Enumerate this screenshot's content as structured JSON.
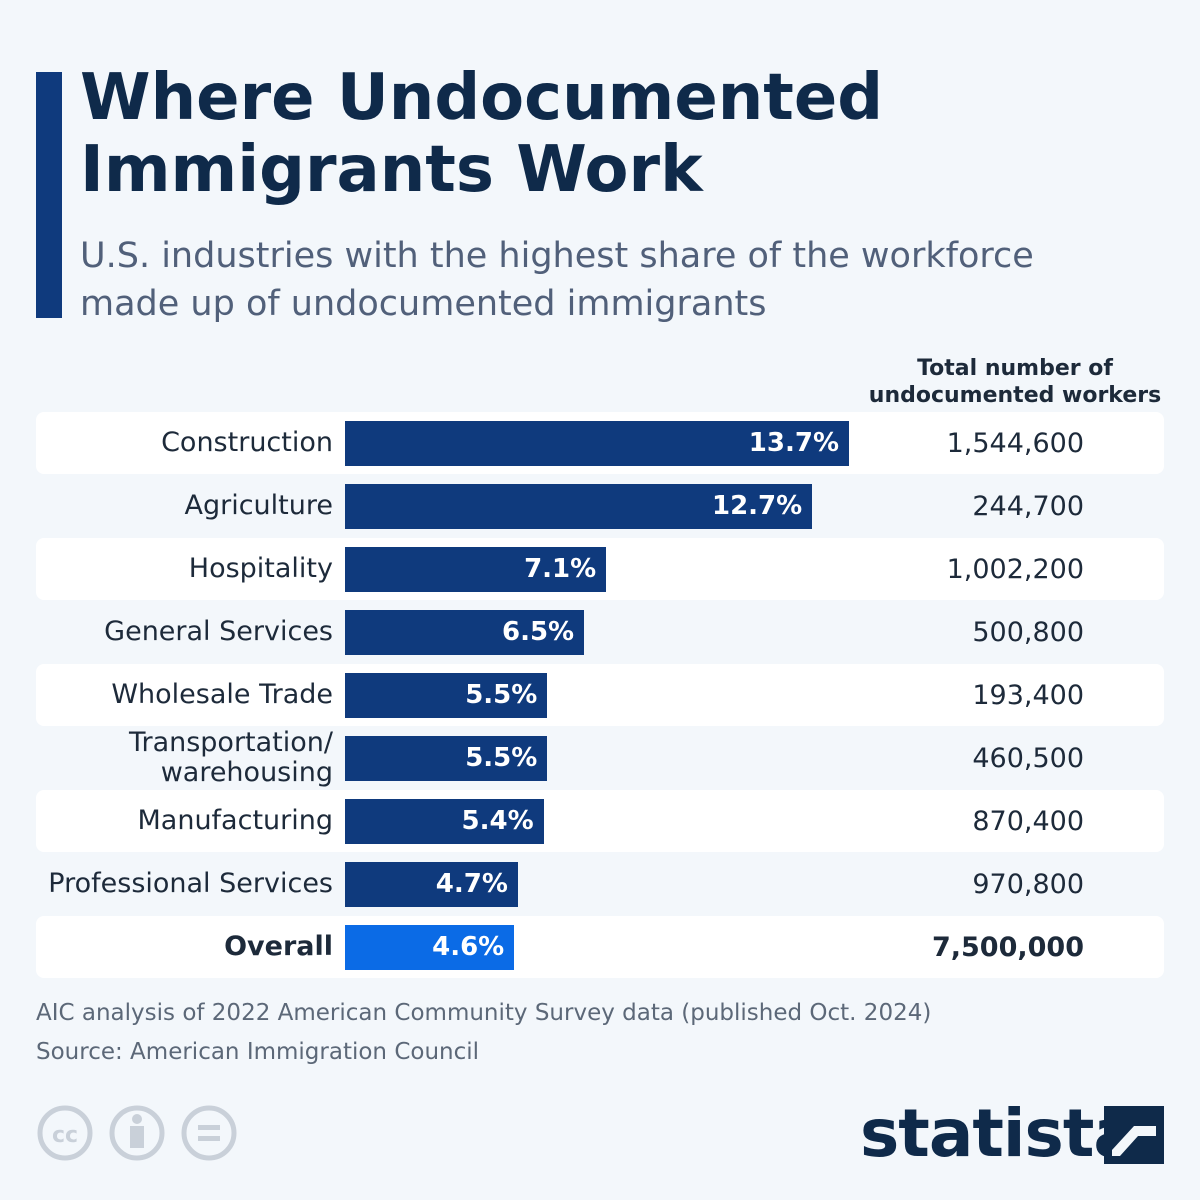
{
  "chart_data": {
    "type": "bar",
    "title": "Where Undocumented Immigrants Work",
    "subtitle": "U.S. industries with the highest share of the workforce made up of undocumented immigrants",
    "categories": [
      "Construction",
      "Agriculture",
      "Hospitality",
      "General Services",
      "Wholesale Trade",
      "Transportation/ warehousing",
      "Manufacturing",
      "Professional Services",
      "Overall"
    ],
    "values": [
      13.7,
      12.7,
      7.1,
      6.5,
      5.5,
      5.5,
      5.4,
      4.7,
      4.6
    ],
    "value_labels": [
      "13.7%",
      "12.7%",
      "7.1%",
      "6.5%",
      "5.5%",
      "5.5%",
      "5.4%",
      "4.7%",
      "4.6%"
    ],
    "colors": [
      "#0f3a7d",
      "#0f3a7d",
      "#0f3a7d",
      "#0f3a7d",
      "#0f3a7d",
      "#0f3a7d",
      "#0f3a7d",
      "#0f3a7d",
      "#0b6be6"
    ],
    "totals_title": "Total number of undocumented workers",
    "totals": [
      "1,544,600",
      "244,700",
      "1,002,200",
      "500,800",
      "193,400",
      "460,500",
      "870,400",
      "970,800",
      "7,500,000"
    ],
    "note": "AIC analysis of 2022 American Community Survey data (published Oct. 2024)",
    "source": "Source: American Immigration Council",
    "brand": "statista"
  }
}
